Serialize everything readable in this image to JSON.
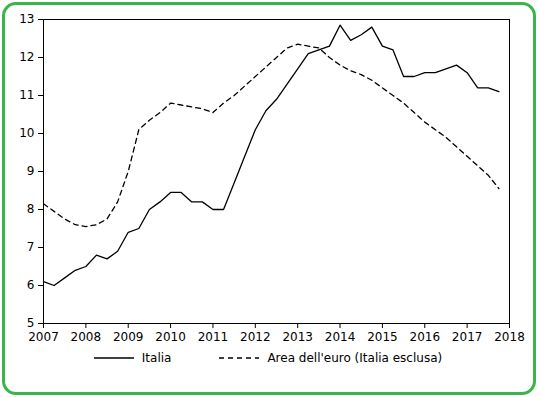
{
  "chart_data": {
    "type": "line",
    "x": [
      2007,
      2007.25,
      2007.5,
      2007.75,
      2008,
      2008.25,
      2008.5,
      2008.75,
      2009,
      2009.25,
      2009.5,
      2009.75,
      2010,
      2010.25,
      2010.5,
      2010.75,
      2011,
      2011.25,
      2011.5,
      2011.75,
      2012,
      2012.25,
      2012.5,
      2012.75,
      2013,
      2013.25,
      2013.5,
      2013.75,
      2014,
      2014.25,
      2014.5,
      2014.75,
      2015,
      2015.25,
      2015.5,
      2015.75,
      2016,
      2016.25,
      2016.5,
      2016.75,
      2017,
      2017.25,
      2017.5,
      2017.75
    ],
    "series": [
      {
        "name": "Italia",
        "color": "#000000",
        "line_style": "solid",
        "values": [
          6.1,
          6.0,
          6.2,
          6.4,
          6.5,
          6.8,
          6.7,
          6.9,
          7.4,
          7.5,
          8.0,
          8.2,
          8.45,
          8.45,
          8.2,
          8.2,
          8.0,
          8.0,
          8.7,
          9.4,
          10.1,
          10.6,
          10.9,
          11.3,
          11.7,
          12.1,
          12.2,
          12.3,
          12.85,
          12.45,
          12.6,
          12.8,
          12.3,
          12.2,
          11.5,
          11.5,
          11.6,
          11.6,
          11.7,
          11.8,
          11.6,
          11.2,
          11.2,
          11.1
        ]
      },
      {
        "name": "Area dell'euro (Italia esclusa)",
        "color": "#000000",
        "line_style": "dashed",
        "values": [
          8.15,
          7.95,
          7.75,
          7.6,
          7.55,
          7.6,
          7.75,
          8.2,
          9.0,
          10.1,
          10.35,
          10.55,
          10.8,
          10.75,
          10.7,
          10.65,
          10.55,
          10.8,
          11.0,
          11.25,
          11.5,
          11.75,
          12.0,
          12.25,
          12.35,
          12.3,
          12.25,
          12.0,
          11.8,
          11.65,
          11.55,
          11.4,
          11.2,
          11.0,
          10.8,
          10.55,
          10.3,
          10.1,
          9.9,
          9.65,
          9.4,
          9.15,
          8.9,
          8.55
        ]
      }
    ],
    "xlim": [
      2007,
      2018
    ],
    "xticks": [
      2007,
      2008,
      2009,
      2010,
      2011,
      2012,
      2013,
      2014,
      2015,
      2016,
      2017,
      2018
    ],
    "ylim": [
      5,
      13
    ],
    "yticks": [
      5,
      6,
      7,
      8,
      9,
      10,
      11,
      12,
      13
    ],
    "grid": false,
    "legend": "bottom"
  }
}
